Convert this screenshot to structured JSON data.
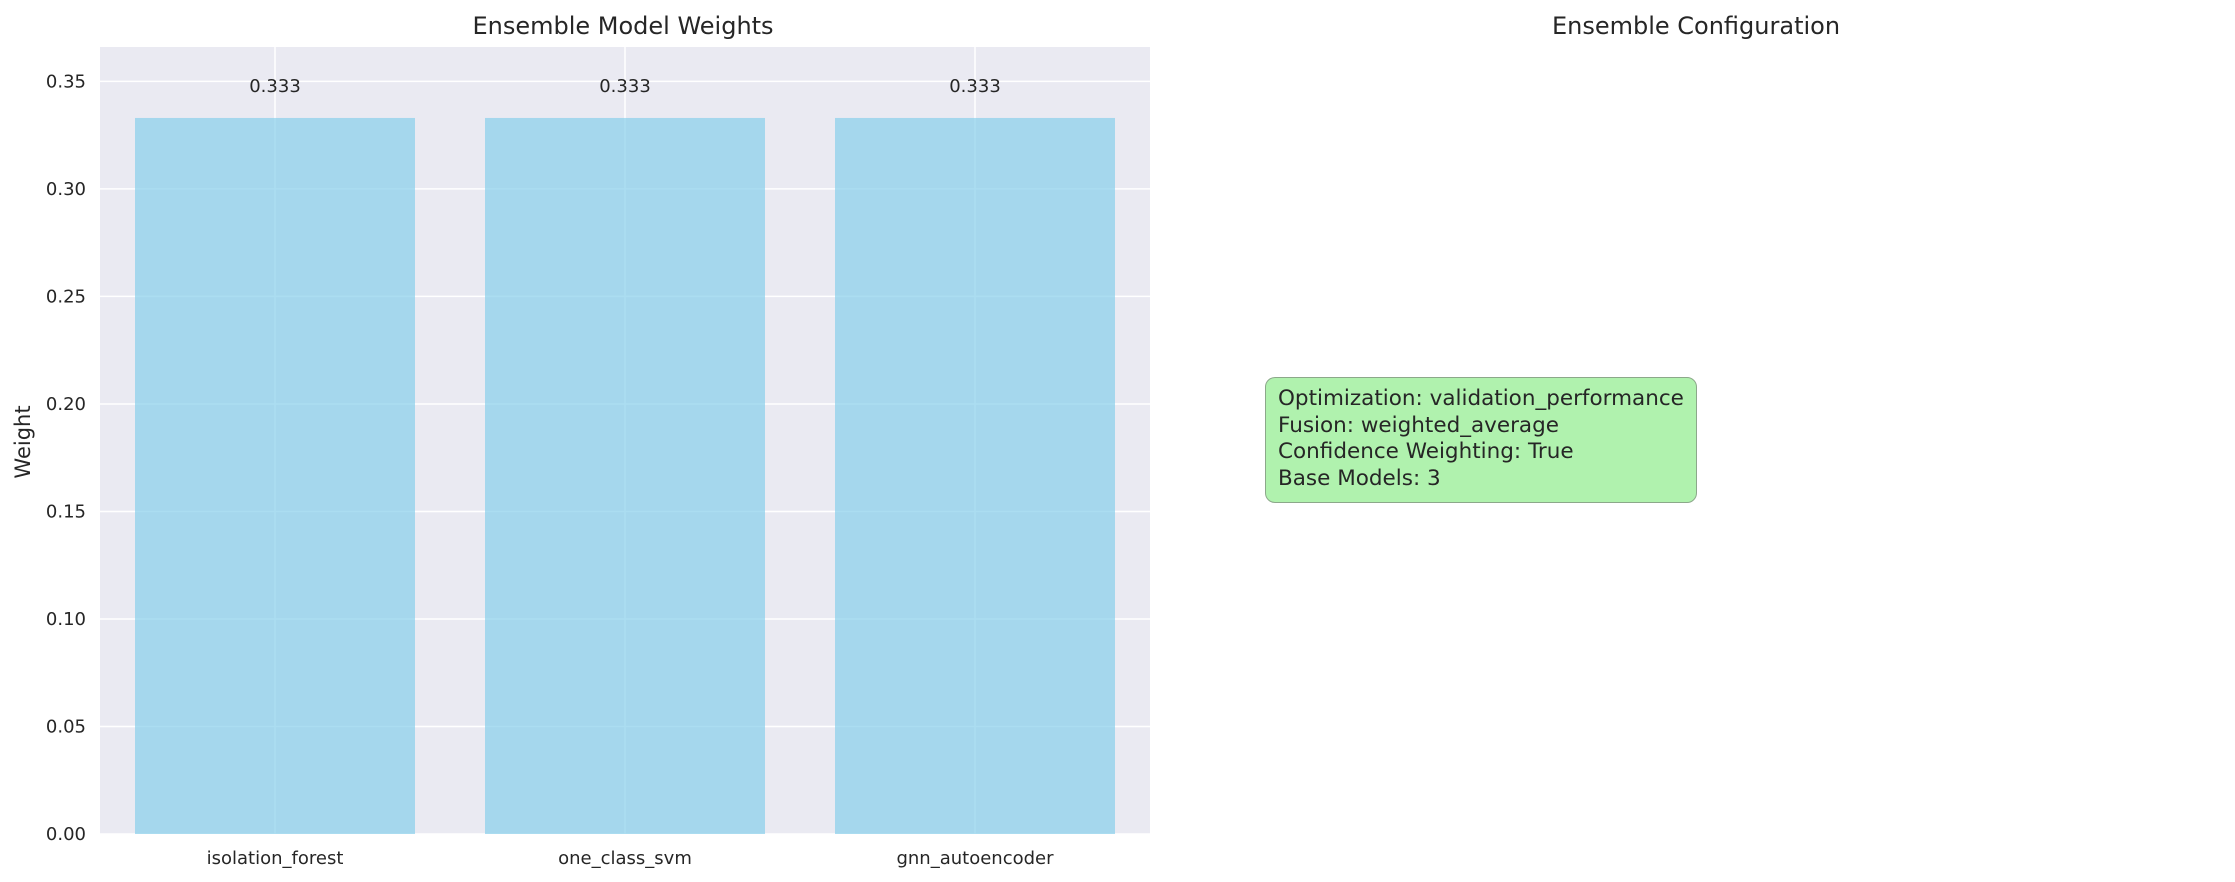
{
  "chart_data": [
    {
      "type": "bar",
      "title": "Ensemble Model Weights",
      "xlabel": "",
      "ylabel": "Weight",
      "categories": [
        "isolation_forest",
        "one_class_svm",
        "gnn_autoencoder"
      ],
      "values": [
        0.333,
        0.333,
        0.333
      ],
      "value_labels": [
        "0.333",
        "0.333",
        "0.333"
      ],
      "ylim": [
        0,
        0.366
      ],
      "yticks": [
        0.0,
        0.05,
        0.1,
        0.15,
        0.2,
        0.25,
        0.3,
        0.35
      ],
      "ytick_labels": [
        "0.00",
        "0.05",
        "0.10",
        "0.15",
        "0.20",
        "0.25",
        "0.30",
        "0.35"
      ],
      "grid": true,
      "bar_color": "#87ceeb",
      "background_color": "#eaeaf2"
    },
    {
      "type": "table",
      "title": "Ensemble Configuration",
      "lines": [
        "Optimization: validation_performance",
        "Fusion: weighted_average",
        "Confidence Weighting: True",
        "Base Models: 3"
      ],
      "box_color": "#90ee90"
    }
  ]
}
